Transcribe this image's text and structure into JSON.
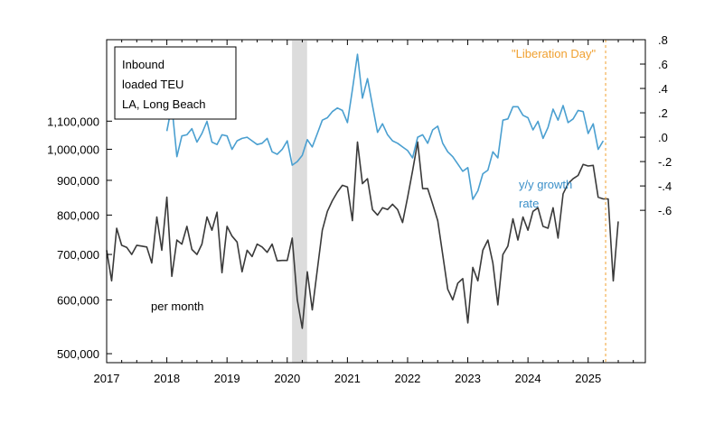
{
  "chart_data": {
    "type": "line",
    "legend_box": [
      "Inbound",
      "loaded TEU",
      "LA, Long Beach"
    ],
    "annotations": {
      "event_label": "\"Liberation Day\"",
      "event_date": 2025.29,
      "recession_shade": [
        2020.08,
        2020.33
      ],
      "yoy_label_line1": "y/y growth",
      "yoy_label_line2": "rate",
      "level_label": "per month"
    },
    "colors": {
      "level": "#3a3a3a",
      "yoy": "#4a9fd0",
      "event": "#f0a030",
      "shade": "#dcdcdc"
    },
    "x_axis": {
      "range": [
        2017.0,
        2025.95
      ],
      "ticks": [
        {
          "v": 2017,
          "label": "2017"
        },
        {
          "v": 2018,
          "label": "2018"
        },
        {
          "v": 2019,
          "label": "2019"
        },
        {
          "v": 2020,
          "label": "2020"
        },
        {
          "v": 2021,
          "label": "2021"
        },
        {
          "v": 2022,
          "label": "2022"
        },
        {
          "v": 2023,
          "label": "2023"
        },
        {
          "v": 2024,
          "label": "2024"
        },
        {
          "v": 2025,
          "label": "2025"
        }
      ]
    },
    "left_axis": {
      "scale": "log",
      "range": [
        485000,
        1450000
      ],
      "ticks": [
        {
          "v": 500000,
          "label": "500,000"
        },
        {
          "v": 600000,
          "label": "600,000"
        },
        {
          "v": 700000,
          "label": "700,000"
        },
        {
          "v": 800000,
          "label": "800,000"
        },
        {
          "v": 900000,
          "label": "900,000"
        },
        {
          "v": 1000000,
          "label": "1,000,000"
        },
        {
          "v": 1100000,
          "label": "1,100,000"
        }
      ]
    },
    "right_axis": {
      "scale": "linear",
      "range": [
        -1.85,
        0.8
      ],
      "ticks": [
        {
          "v": 0.8,
          "label": ".8"
        },
        {
          "v": 0.6,
          "label": ".6"
        },
        {
          "v": 0.4,
          "label": ".4"
        },
        {
          "v": 0.2,
          "label": ".2"
        },
        {
          "v": 0.0,
          "label": ".0"
        },
        {
          "v": -0.2,
          "label": "-.2"
        },
        {
          "v": -0.4,
          "label": "-.4"
        },
        {
          "v": -0.6,
          "label": "-.6"
        }
      ]
    },
    "series": [
      {
        "axis": "left",
        "start": 2017.0,
        "values": [
          710000,
          640000,
          765000,
          722000,
          717000,
          700000,
          722000,
          720000,
          718000,
          680000,
          795000,
          710000,
          850000,
          650000,
          735000,
          725000,
          770000,
          712000,
          700000,
          725000,
          795000,
          760000,
          808000,
          658000,
          770000,
          745000,
          730000,
          660000,
          710000,
          695000,
          725000,
          718000,
          705000,
          725000,
          685000,
          686000,
          686000,
          740000,
          600000,
          545000,
          660000,
          580000,
          665000,
          760000,
          810000,
          840000,
          865000,
          885000,
          880000,
          785000,
          1025000,
          890000,
          905000,
          815000,
          800000,
          820000,
          815000,
          830000,
          815000,
          780000,
          850000,
          930000,
          1025000,
          875000,
          875000,
          830000,
          785000,
          700000,
          622000,
          600000,
          635000,
          645000,
          555000,
          670000,
          640000,
          710000,
          735000,
          680000,
          590000,
          700000,
          720000,
          790000,
          735000,
          795000,
          760000,
          810000,
          820000,
          770000,
          765000,
          820000,
          740000,
          860000,
          890000,
          905000,
          915000,
          950000,
          945000,
          947000,
          850000,
          845000,
          845000,
          640000,
          783000
        ]
      },
      {
        "axis": "right",
        "start": 2018.0,
        "values": [
          0.05,
          0.26,
          -0.16,
          0.01,
          0.02,
          0.07,
          -0.04,
          0.03,
          0.13,
          -0.04,
          -0.06,
          0.02,
          0.01,
          -0.1,
          -0.03,
          -0.01,
          0.0,
          -0.03,
          -0.06,
          -0.05,
          -0.01,
          -0.12,
          -0.14,
          -0.1,
          -0.03,
          -0.23,
          -0.2,
          -0.15,
          -0.02,
          -0.08,
          0.03,
          0.14,
          0.16,
          0.21,
          0.24,
          0.22,
          0.12,
          0.39,
          0.68,
          0.32,
          0.48,
          0.26,
          0.04,
          0.11,
          0.02,
          -0.03,
          -0.05,
          -0.08,
          -0.11,
          -0.17,
          0.0,
          0.02,
          -0.05,
          0.06,
          0.09,
          -0.05,
          -0.12,
          -0.16,
          -0.22,
          -0.28,
          -0.25,
          -0.51,
          -0.44,
          -0.3,
          -0.27,
          -0.12,
          -0.17,
          0.14,
          0.15,
          0.25,
          0.25,
          0.18,
          0.16,
          0.06,
          0.13,
          -0.01,
          0.08,
          0.23,
          0.14,
          0.26,
          0.12,
          0.15,
          0.22,
          0.21,
          0.03,
          0.11,
          -0.1,
          -0.03
        ]
      }
    ]
  }
}
